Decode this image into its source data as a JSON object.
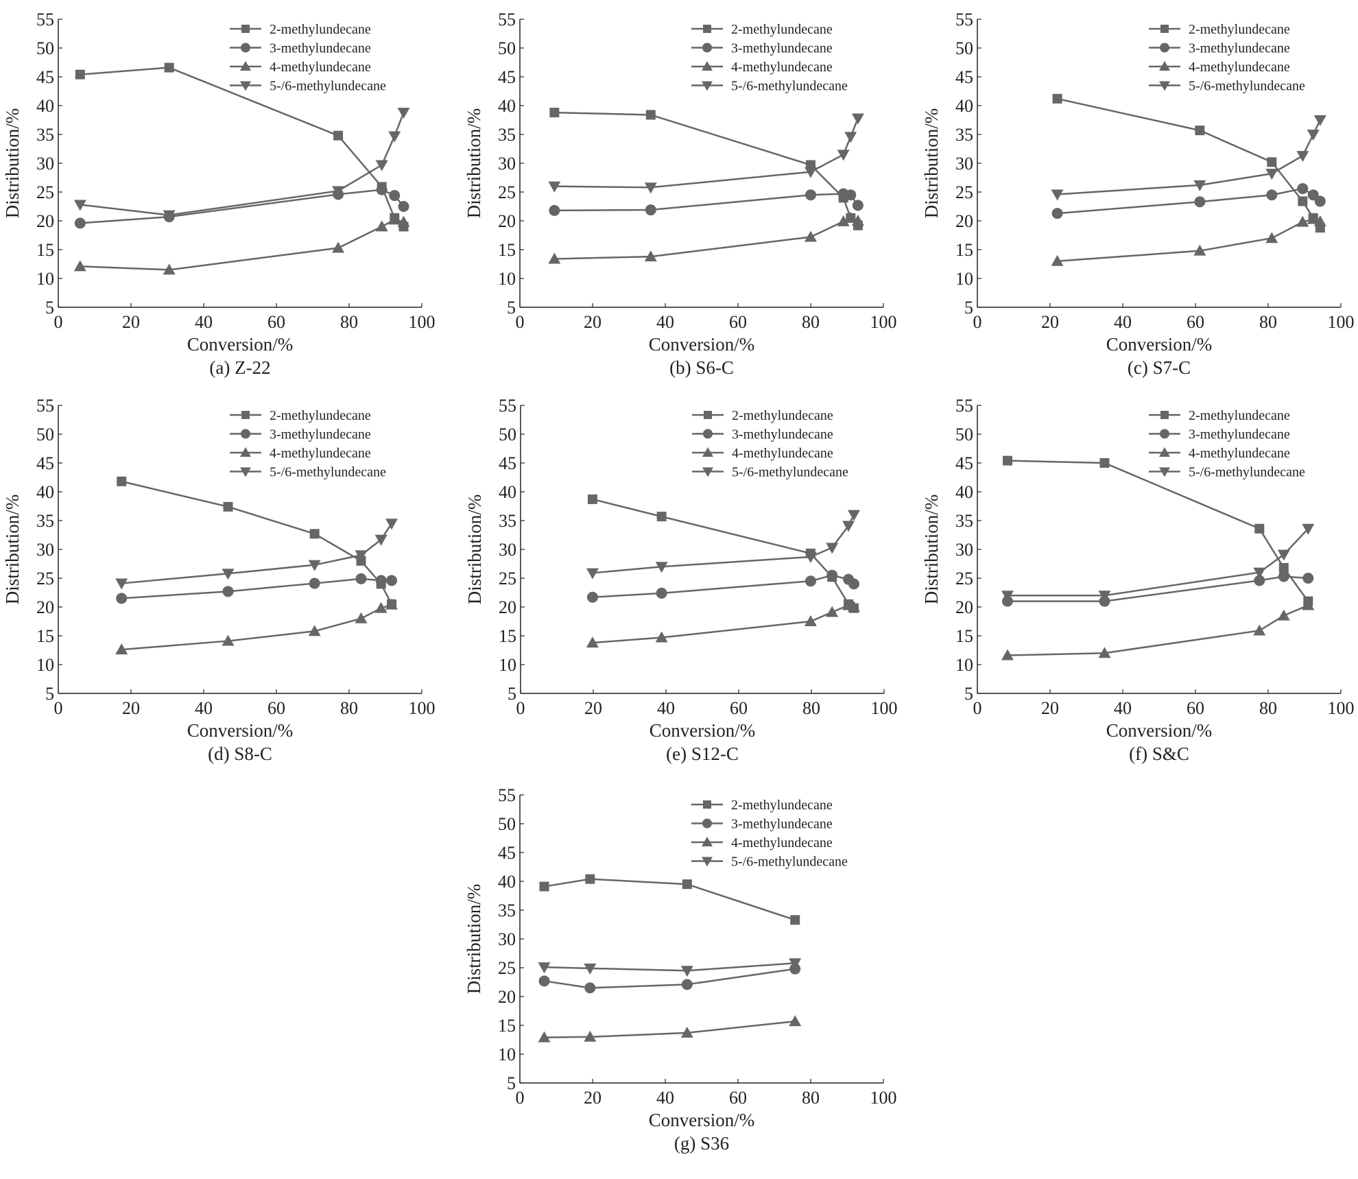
{
  "legend_names": [
    "2-methylundecane",
    "3-methylundecane",
    "4-methylundecane",
    "5-/6-methylundecane"
  ],
  "marker_color": "#666666",
  "axis_color": "#222222",
  "chart_data": [
    {
      "type": "line",
      "caption": "(a) Z-22",
      "xlabel": "Conversion/%",
      "ylabel": "Distribution/%",
      "xlim": [
        0,
        100
      ],
      "ylim": [
        5,
        55
      ],
      "xticks": [
        0,
        20,
        40,
        60,
        80,
        100
      ],
      "yticks": [
        5,
        10,
        15,
        20,
        25,
        30,
        35,
        40,
        45,
        50,
        55
      ],
      "legend": "top-right",
      "series": [
        {
          "name": "2-methylundecane",
          "marker": "square",
          "x": [
            6,
            30.5,
            77,
            89,
            92.5,
            95
          ],
          "y": [
            45.4,
            46.6,
            34.8,
            25.9,
            20.5,
            19
          ]
        },
        {
          "name": "3-methylundecane",
          "marker": "circle",
          "x": [
            6,
            30.5,
            77,
            89,
            92.5,
            95
          ],
          "y": [
            19.6,
            20.7,
            24.6,
            25.4,
            24.4,
            22.5
          ]
        },
        {
          "name": "4-methylundecane",
          "marker": "triangle-up",
          "x": [
            6,
            30.5,
            77,
            89,
            92.5,
            95
          ],
          "y": [
            12.1,
            11.5,
            15.3,
            19,
            20.2,
            19.8
          ]
        },
        {
          "name": "5-/6-methylundecane",
          "marker": "triangle-down",
          "x": [
            6,
            30.5,
            77,
            89,
            92.5,
            95
          ],
          "y": [
            22.8,
            21,
            25.2,
            29.7,
            34.7,
            38.8
          ]
        }
      ]
    },
    {
      "type": "line",
      "caption": "(b) S6-C",
      "xlabel": "Conversion/%",
      "ylabel": "Distribution/%",
      "xlim": [
        0,
        100
      ],
      "ylim": [
        5,
        55
      ],
      "xticks": [
        0,
        20,
        40,
        60,
        80,
        100
      ],
      "yticks": [
        5,
        10,
        15,
        20,
        25,
        30,
        35,
        40,
        45,
        50,
        55
      ],
      "legend": "top-right",
      "series": [
        {
          "name": "2-methylundecane",
          "marker": "square",
          "x": [
            9.5,
            36,
            80,
            89,
            91,
            93
          ],
          "y": [
            38.8,
            38.4,
            29.7,
            24,
            20.5,
            19.2
          ]
        },
        {
          "name": "3-methylundecane",
          "marker": "circle",
          "x": [
            9.5,
            36,
            80,
            89,
            91,
            93
          ],
          "y": [
            21.8,
            21.9,
            24.5,
            24.7,
            24.5,
            22.7
          ]
        },
        {
          "name": "4-methylundecane",
          "marker": "triangle-up",
          "x": [
            9.5,
            36,
            80,
            89,
            91,
            93
          ],
          "y": [
            13.4,
            13.8,
            17.2,
            19.9,
            20.5,
            20
          ]
        },
        {
          "name": "5-/6-methylundecane",
          "marker": "triangle-down",
          "x": [
            9.5,
            36,
            80,
            89,
            91,
            93
          ],
          "y": [
            26,
            25.8,
            28.5,
            31.5,
            34.6,
            37.8
          ]
        }
      ]
    },
    {
      "type": "line",
      "caption": "(c) S7-C",
      "xlabel": "Conversion/%",
      "ylabel": "Distribution/%",
      "xlim": [
        0,
        100
      ],
      "ylim": [
        5,
        55
      ],
      "xticks": [
        0,
        20,
        40,
        60,
        80,
        100
      ],
      "yticks": [
        5,
        10,
        15,
        20,
        25,
        30,
        35,
        40,
        45,
        50,
        55
      ],
      "legend": "top-right",
      "series": [
        {
          "name": "2-methylundecane",
          "marker": "square",
          "x": [
            22,
            61.2,
            81,
            89.5,
            92.4,
            94.3
          ],
          "y": [
            41.2,
            35.7,
            30.2,
            23.4,
            20.5,
            18.8
          ]
        },
        {
          "name": "3-methylundecane",
          "marker": "circle",
          "x": [
            22,
            61.2,
            81,
            89.5,
            92.4,
            94.3
          ],
          "y": [
            21.3,
            23.3,
            24.5,
            25.6,
            24.5,
            23.4
          ]
        },
        {
          "name": "4-methylundecane",
          "marker": "triangle-up",
          "x": [
            22,
            61.2,
            81,
            89.5,
            92.4,
            94.3
          ],
          "y": [
            13,
            14.8,
            17,
            19.8,
            20.3,
            19.9
          ]
        },
        {
          "name": "5-/6-methylundecane",
          "marker": "triangle-down",
          "x": [
            22,
            61.2,
            81,
            89.5,
            92.4,
            94.3
          ],
          "y": [
            24.6,
            26.2,
            28.2,
            31.3,
            35,
            37.5
          ]
        }
      ]
    },
    {
      "type": "line",
      "caption": "(d) S8-C",
      "xlabel": "Conversion/%",
      "ylabel": "Distribution/%",
      "xlim": [
        0,
        100
      ],
      "ylim": [
        5,
        55
      ],
      "xticks": [
        0,
        20,
        40,
        60,
        80,
        100
      ],
      "yticks": [
        5,
        10,
        15,
        20,
        25,
        30,
        35,
        40,
        45,
        50,
        55
      ],
      "legend": "top-right",
      "series": [
        {
          "name": "2-methylundecane",
          "marker": "square",
          "x": [
            17.4,
            46.7,
            70.5,
            83.3,
            88.8,
            91.7
          ],
          "y": [
            41.8,
            37.4,
            32.7,
            28,
            24,
            20.5
          ]
        },
        {
          "name": "3-methylundecane",
          "marker": "circle",
          "x": [
            17.4,
            46.7,
            70.5,
            83.3,
            88.8,
            91.7
          ],
          "y": [
            21.5,
            22.7,
            24.1,
            24.9,
            24.6,
            24.6
          ]
        },
        {
          "name": "4-methylundecane",
          "marker": "triangle-up",
          "x": [
            17.4,
            46.7,
            70.5,
            83.3,
            88.8,
            91.7
          ],
          "y": [
            12.6,
            14.1,
            15.8,
            18,
            19.8,
            20.4
          ]
        },
        {
          "name": "5-/6-methylundecane",
          "marker": "triangle-down",
          "x": [
            17.4,
            46.7,
            70.5,
            83.3,
            88.8,
            91.7
          ],
          "y": [
            24.1,
            25.8,
            27.3,
            29,
            31.7,
            34.5
          ]
        }
      ]
    },
    {
      "type": "line",
      "caption": "(e) S12-C",
      "xlabel": "Conversion/%",
      "ylabel": "Distribution/%",
      "xlim": [
        0,
        100
      ],
      "ylim": [
        5,
        55
      ],
      "xticks": [
        0,
        20,
        40,
        60,
        80,
        100
      ],
      "yticks": [
        5,
        10,
        15,
        20,
        25,
        30,
        35,
        40,
        45,
        50,
        55
      ],
      "legend": "top-right",
      "series": [
        {
          "name": "2-methylundecane",
          "marker": "square",
          "x": [
            19.8,
            38.8,
            79.8,
            85.7,
            90.2,
            91.7
          ],
          "y": [
            38.7,
            35.7,
            29.3,
            25.2,
            20.5,
            19.8
          ]
        },
        {
          "name": "3-methylundecane",
          "marker": "circle",
          "x": [
            19.8,
            38.8,
            79.8,
            85.7,
            90.2,
            91.7
          ],
          "y": [
            21.7,
            22.4,
            24.5,
            25.5,
            24.8,
            24
          ]
        },
        {
          "name": "4-methylundecane",
          "marker": "triangle-up",
          "x": [
            19.8,
            38.8,
            79.8,
            85.7,
            90.2,
            91.7
          ],
          "y": [
            13.8,
            14.7,
            17.5,
            19.1,
            20.3,
            20
          ]
        },
        {
          "name": "5-/6-methylundecane",
          "marker": "triangle-down",
          "x": [
            19.8,
            38.8,
            79.8,
            85.7,
            90.2,
            91.7
          ],
          "y": [
            25.9,
            27,
            28.7,
            30.3,
            34.1,
            36
          ]
        }
      ]
    },
    {
      "type": "line",
      "caption": "(f) S&C",
      "xlabel": "Conversion/%",
      "ylabel": "Distribution/%",
      "xlim": [
        0,
        100
      ],
      "ylim": [
        5,
        55
      ],
      "xticks": [
        0,
        20,
        40,
        60,
        80,
        100
      ],
      "yticks": [
        5,
        10,
        15,
        20,
        25,
        30,
        35,
        40,
        45,
        50,
        55
      ],
      "legend": "top-right",
      "series": [
        {
          "name": "2-methylundecane",
          "marker": "square",
          "x": [
            8.3,
            35,
            77.6,
            84.3,
            91
          ],
          "y": [
            45.4,
            45,
            33.6,
            26.8,
            21
          ]
        },
        {
          "name": "3-methylundecane",
          "marker": "circle",
          "x": [
            8.3,
            35,
            77.6,
            84.3,
            91
          ],
          "y": [
            21,
            21,
            24.6,
            25.3,
            25
          ]
        },
        {
          "name": "4-methylundecane",
          "marker": "triangle-up",
          "x": [
            8.3,
            35,
            77.6,
            84.3,
            91
          ],
          "y": [
            11.6,
            12,
            15.9,
            18.5,
            20.3
          ]
        },
        {
          "name": "5-/6-methylundecane",
          "marker": "triangle-down",
          "x": [
            8.3,
            35,
            77.6,
            84.3,
            91
          ],
          "y": [
            22,
            22,
            26,
            29.1,
            33.6
          ]
        }
      ]
    },
    {
      "type": "line",
      "caption": "(g) S36",
      "xlabel": "Conversion/%",
      "ylabel": "Distribution/%",
      "xlim": [
        0,
        100
      ],
      "ylim": [
        5,
        55
      ],
      "xticks": [
        0,
        20,
        40,
        60,
        80,
        100
      ],
      "yticks": [
        5,
        10,
        15,
        20,
        25,
        30,
        35,
        40,
        45,
        50,
        55
      ],
      "legend": "top-right",
      "series": [
        {
          "name": "2-methylundecane",
          "marker": "square",
          "x": [
            6.7,
            19.3,
            46,
            75.7
          ],
          "y": [
            39.1,
            40.4,
            39.5,
            33.3
          ]
        },
        {
          "name": "3-methylundecane",
          "marker": "circle",
          "x": [
            6.7,
            19.3,
            46,
            75.7
          ],
          "y": [
            22.7,
            21.5,
            22.1,
            24.8
          ]
        },
        {
          "name": "4-methylundecane",
          "marker": "triangle-up",
          "x": [
            6.7,
            19.3,
            46,
            75.7
          ],
          "y": [
            12.9,
            13,
            13.7,
            15.7
          ]
        },
        {
          "name": "5-/6-methylundecane",
          "marker": "triangle-down",
          "x": [
            6.7,
            19.3,
            46,
            75.7
          ],
          "y": [
            25.1,
            24.9,
            24.5,
            25.8
          ]
        }
      ]
    }
  ]
}
